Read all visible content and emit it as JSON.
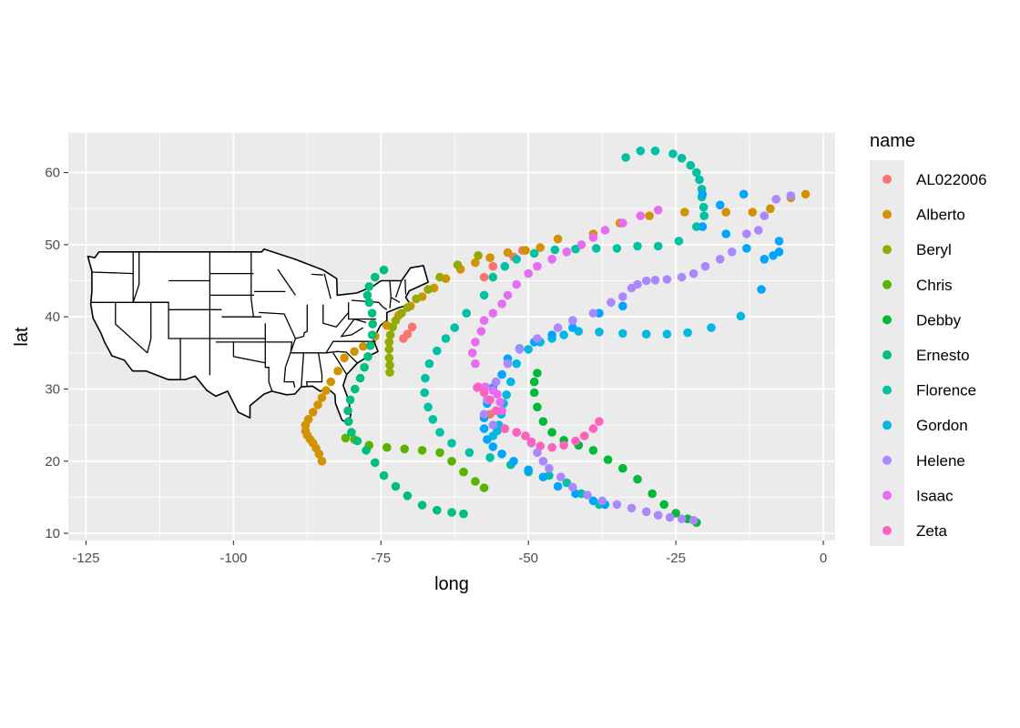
{
  "chart_data": {
    "type": "scatter",
    "xlabel": "long",
    "ylabel": "lat",
    "xlim": [
      -128,
      2
    ],
    "ylim": [
      9,
      65.5
    ],
    "x_ticks": [
      -125,
      -100,
      -75,
      -50,
      -25,
      0
    ],
    "y_ticks": [
      10,
      20,
      30,
      40,
      50,
      60
    ],
    "x_tick_labels": [
      "-125",
      "-100",
      "-75",
      "-50",
      "-25",
      "0"
    ],
    "y_tick_labels": [
      "10",
      "20",
      "30",
      "40",
      "50",
      "60"
    ],
    "grid": true,
    "legend": {
      "title": "name",
      "position": "right"
    },
    "basemap": "us-state-outlines",
    "series": [
      {
        "name": "AL022006",
        "color": "#F8766D",
        "points": [
          [
            -71.2,
            37
          ],
          [
            -70.5,
            37.6
          ],
          [
            -69.7,
            38.6
          ],
          [
            -57.5,
            45.5
          ],
          [
            -56,
            47
          ],
          [
            -52.5,
            48.3
          ],
          [
            -51,
            49.2
          ],
          [
            -56.5,
            26.5
          ]
        ]
      },
      {
        "name": "Alberto",
        "color": "#D39200",
        "points": [
          [
            -85,
            20
          ],
          [
            -85.5,
            21
          ],
          [
            -86,
            21.8
          ],
          [
            -86.5,
            22.5
          ],
          [
            -87,
            23
          ],
          [
            -87.5,
            23.6
          ],
          [
            -87.8,
            24.2
          ],
          [
            -87.8,
            25
          ],
          [
            -87.3,
            25.8
          ],
          [
            -86.5,
            26.8
          ],
          [
            -85.7,
            27.8
          ],
          [
            -85,
            28.8
          ],
          [
            -84.3,
            29.8
          ],
          [
            -83.5,
            31
          ],
          [
            -82.3,
            32.5
          ],
          [
            -81.2,
            34.3
          ],
          [
            -79.5,
            35.2
          ],
          [
            -78,
            35.9
          ],
          [
            -76,
            37.3
          ],
          [
            -74,
            38.8
          ],
          [
            -72,
            40.2
          ],
          [
            -70,
            41.5
          ],
          [
            -68,
            42.8
          ],
          [
            -66,
            44
          ],
          [
            -64,
            45.3
          ],
          [
            -61.5,
            46.6
          ],
          [
            -59,
            47.5
          ],
          [
            -56.5,
            48.2
          ],
          [
            -53.5,
            48.9
          ],
          [
            -50.5,
            49.2
          ],
          [
            -48,
            49.6
          ],
          [
            -45,
            50.8
          ],
          [
            -39,
            51.5
          ],
          [
            -34.5,
            53
          ],
          [
            -29.5,
            54
          ],
          [
            -23.5,
            54.5
          ],
          [
            -16.5,
            54.5
          ],
          [
            -12,
            54.5
          ],
          [
            -9,
            55
          ],
          [
            -5.5,
            56.5
          ],
          [
            -3,
            57
          ]
        ]
      },
      {
        "name": "Beryl",
        "color": "#93AA00",
        "points": [
          [
            -73.5,
            32.3
          ],
          [
            -73.5,
            33.3
          ],
          [
            -73.6,
            34.3
          ],
          [
            -73.6,
            35.5
          ],
          [
            -73.6,
            36.5
          ],
          [
            -73.4,
            37.5
          ],
          [
            -73,
            38.6
          ],
          [
            -72.5,
            39.5
          ],
          [
            -71.5,
            40.5
          ],
          [
            -70.5,
            41.3
          ],
          [
            -69,
            42.5
          ],
          [
            -67,
            43.8
          ],
          [
            -65,
            45.5
          ],
          [
            -62,
            47.2
          ],
          [
            -58.5,
            48.5
          ]
        ]
      },
      {
        "name": "Chris",
        "color": "#5BB300",
        "points": [
          [
            -81,
            23.2
          ],
          [
            -79.5,
            23
          ],
          [
            -77,
            22.2
          ],
          [
            -74,
            21.9
          ],
          [
            -71,
            21.7
          ],
          [
            -68,
            21.5
          ],
          [
            -65,
            21.2
          ],
          [
            -63,
            20
          ],
          [
            -61,
            18.5
          ],
          [
            -59,
            17.2
          ],
          [
            -57.5,
            16.3
          ]
        ]
      },
      {
        "name": "Debby",
        "color": "#00BA38",
        "points": [
          [
            -21.5,
            11.5
          ],
          [
            -23,
            12
          ],
          [
            -25,
            12.8
          ],
          [
            -27,
            14
          ],
          [
            -29,
            15.5
          ],
          [
            -31.5,
            17.5
          ],
          [
            -34,
            19
          ],
          [
            -36.5,
            20.2
          ],
          [
            -39,
            21.5
          ],
          [
            -41.5,
            22.2
          ],
          [
            -44,
            22.9
          ],
          [
            -46,
            24
          ],
          [
            -47.5,
            25.5
          ],
          [
            -48.5,
            27.5
          ],
          [
            -49,
            29.5
          ],
          [
            -49,
            31
          ],
          [
            -48.5,
            32.2
          ]
        ]
      },
      {
        "name": "Ernesto",
        "color": "#00BF7D",
        "points": [
          [
            -61,
            12.7
          ],
          [
            -63,
            12.9
          ],
          [
            -65.5,
            13.2
          ],
          [
            -68,
            13.9
          ],
          [
            -70.5,
            15.2
          ],
          [
            -72.5,
            16.5
          ],
          [
            -74.5,
            18
          ],
          [
            -76,
            19.8
          ],
          [
            -77.5,
            21.5
          ],
          [
            -79,
            22.8
          ],
          [
            -80,
            24
          ],
          [
            -80.5,
            25.5
          ],
          [
            -80.6,
            27
          ],
          [
            -80.2,
            28.5
          ],
          [
            -79.4,
            30
          ],
          [
            -78.5,
            31.5
          ],
          [
            -77.8,
            33
          ],
          [
            -77.2,
            34.5
          ],
          [
            -76.8,
            36
          ],
          [
            -76.5,
            37.5
          ],
          [
            -76.4,
            39
          ],
          [
            -76.5,
            40.5
          ],
          [
            -77,
            42
          ],
          [
            -77.3,
            43
          ],
          [
            -77,
            44.2
          ],
          [
            -76,
            45.5
          ],
          [
            -74.5,
            46.5
          ]
        ]
      },
      {
        "name": "Florence",
        "color": "#00C1A3",
        "points": [
          [
            -38,
            14
          ],
          [
            -41,
            15.5
          ],
          [
            -43.5,
            17
          ],
          [
            -46.5,
            18
          ],
          [
            -50,
            18.5
          ],
          [
            -53,
            19.5
          ],
          [
            -56.5,
            20.5
          ],
          [
            -60,
            21.2
          ],
          [
            -63,
            22.5
          ],
          [
            -65,
            24
          ],
          [
            -66.2,
            25.8
          ],
          [
            -67,
            27.5
          ],
          [
            -67.6,
            29.5
          ],
          [
            -67.5,
            31.5
          ],
          [
            -66.8,
            33.5
          ],
          [
            -65.5,
            35.3
          ],
          [
            -64,
            37
          ],
          [
            -62.5,
            38.5
          ],
          [
            -60.5,
            40.5
          ],
          [
            -57.5,
            43
          ],
          [
            -56,
            45.5
          ],
          [
            -54,
            47
          ],
          [
            -52,
            48
          ],
          [
            -49,
            48.8
          ],
          [
            -45.5,
            49.3
          ],
          [
            -42,
            49.4
          ],
          [
            -38.5,
            49.5
          ],
          [
            -35,
            49.5
          ],
          [
            -31.5,
            49.8
          ],
          [
            -28,
            49.8
          ],
          [
            -24.5,
            50.5
          ],
          [
            -21.5,
            52.5
          ],
          [
            -20.5,
            52.5
          ],
          [
            -20.2,
            54
          ],
          [
            -20.3,
            55.2
          ],
          [
            -20.6,
            56.6
          ],
          [
            -20.6,
            57.7
          ],
          [
            -21,
            59
          ],
          [
            -21.5,
            60
          ],
          [
            -22.5,
            61
          ],
          [
            -24,
            62
          ],
          [
            -25.5,
            62.6
          ],
          [
            -28.5,
            63
          ],
          [
            -31,
            63
          ],
          [
            -33.5,
            62.1
          ]
        ]
      },
      {
        "name": "Gordon",
        "color": "#00B9E3",
        "points": [
          [
            -14,
            40.1
          ],
          [
            -19,
            38.5
          ],
          [
            -23,
            37.8
          ],
          [
            -26.5,
            37.6
          ],
          [
            -30,
            37.6
          ],
          [
            -34,
            37.7
          ],
          [
            -38,
            37.9
          ],
          [
            -41.5,
            38
          ],
          [
            -44,
            37.5
          ],
          [
            -46,
            37
          ],
          [
            -48,
            36.5
          ],
          [
            -50,
            35.5
          ],
          [
            -52,
            33.5
          ],
          [
            -53,
            31
          ],
          [
            -53.7,
            29.2
          ],
          [
            -54.2,
            28
          ],
          [
            -54.6,
            26.5
          ],
          [
            -55,
            25
          ],
          [
            -55.3,
            24.2
          ],
          [
            -56,
            23.5
          ]
        ]
      },
      {
        "name": "Gordon",
        "color": "#00A5FF",
        "points": [
          [
            -37,
            14
          ],
          [
            -39,
            14.5
          ],
          [
            -42,
            15.5
          ],
          [
            -45,
            16.5
          ],
          [
            -47.5,
            17.8
          ],
          [
            -50,
            18.8
          ],
          [
            -52.5,
            20
          ],
          [
            -54.5,
            21
          ],
          [
            -56,
            22
          ],
          [
            -57,
            23
          ],
          [
            -57.5,
            24.5
          ],
          [
            -57.5,
            26
          ],
          [
            -57,
            28
          ],
          [
            -56,
            30.2
          ],
          [
            -54.5,
            32
          ],
          [
            -53.5,
            34.2
          ],
          [
            -51.5,
            35.6
          ],
          [
            -49,
            36.5
          ],
          [
            -46,
            37.5
          ],
          [
            -42.5,
            38.5
          ],
          [
            -38,
            40.5
          ],
          [
            -34,
            41.5
          ],
          [
            -13.5,
            57
          ],
          [
            -20.5,
            57
          ],
          [
            -17.5,
            55.5
          ],
          [
            -16.5,
            51.5
          ],
          [
            -20.5,
            52.5
          ],
          [
            -13,
            49.5
          ],
          [
            -10,
            48
          ],
          [
            -8.5,
            48.5
          ],
          [
            -7.5,
            49
          ],
          [
            -7.5,
            50.5
          ],
          [
            -10.5,
            43.8
          ]
        ]
      },
      {
        "name": "Helene",
        "color": "#AC88FF",
        "points": [
          [
            -22,
            11.8
          ],
          [
            -24,
            12
          ],
          [
            -26,
            12.2
          ],
          [
            -28,
            12.5
          ],
          [
            -30,
            13
          ],
          [
            -32.5,
            13.5
          ],
          [
            -35,
            14
          ],
          [
            -37.5,
            14.5
          ],
          [
            -40,
            15.3
          ],
          [
            -42.5,
            16.4
          ],
          [
            -44.5,
            17.8
          ],
          [
            -46.5,
            19
          ],
          [
            -47.5,
            20
          ],
          [
            -48.5,
            21.2
          ],
          [
            -49.5,
            22.5
          ],
          [
            -50.5,
            23.5
          ],
          [
            -52,
            24
          ],
          [
            -54,
            24.5
          ],
          [
            -56,
            25
          ],
          [
            -57.5,
            26.5
          ],
          [
            -57,
            28.5
          ],
          [
            -55.5,
            31
          ],
          [
            -53.5,
            33.5
          ],
          [
            -51.5,
            35.5
          ],
          [
            -48.5,
            37
          ],
          [
            -45,
            38.5
          ],
          [
            -42.5,
            39.5
          ],
          [
            -39,
            40.5
          ],
          [
            -36,
            42
          ],
          [
            -34,
            42.8
          ],
          [
            -32.5,
            44
          ],
          [
            -31.5,
            44.5
          ],
          [
            -30,
            45
          ],
          [
            -28.5,
            45.1
          ],
          [
            -26.5,
            45.2
          ],
          [
            -24,
            45.5
          ],
          [
            -22,
            46
          ],
          [
            -20,
            47
          ],
          [
            -17.5,
            48
          ],
          [
            -15.5,
            49
          ],
          [
            -13,
            51.5
          ],
          [
            -11,
            52
          ],
          [
            -10,
            54
          ],
          [
            -8,
            56.3
          ],
          [
            -5.5,
            56.8
          ]
        ]
      },
      {
        "name": "Isaac",
        "color": "#E76BF3",
        "points": [
          [
            -59,
            33.5
          ],
          [
            -59.5,
            35
          ],
          [
            -59,
            36.5
          ],
          [
            -58,
            38
          ],
          [
            -57.5,
            39.5
          ],
          [
            -56,
            40.5
          ],
          [
            -54.5,
            41.8
          ],
          [
            -53.5,
            43
          ],
          [
            -52,
            44.5
          ],
          [
            -50,
            46
          ],
          [
            -48.5,
            47
          ],
          [
            -46,
            48
          ],
          [
            -43.5,
            49
          ],
          [
            -41,
            50
          ],
          [
            -39,
            51
          ],
          [
            -37,
            52
          ],
          [
            -34,
            53
          ],
          [
            -31,
            54
          ],
          [
            -28,
            54.8
          ],
          [
            -58.7,
            30.2
          ],
          [
            -57.3,
            30.3
          ],
          [
            -56,
            29.8
          ],
          [
            -55.3,
            29.3
          ],
          [
            -54.8,
            28.2
          ],
          [
            -54.5,
            27
          ]
        ]
      },
      {
        "name": "Zeta",
        "color": "#FF62BC",
        "points": [
          [
            -38,
            25.5
          ],
          [
            -39,
            24.5
          ],
          [
            -40.5,
            23.5
          ],
          [
            -42,
            22.8
          ],
          [
            -44,
            22.2
          ],
          [
            -46,
            21.9
          ],
          [
            -48,
            22.1
          ],
          [
            -49.5,
            22.7
          ],
          [
            -50.5,
            23.5
          ],
          [
            -52,
            24
          ],
          [
            -54,
            24.5
          ],
          [
            -55.5,
            27
          ],
          [
            -56.5,
            28.5
          ],
          [
            -57.5,
            29.5
          ],
          [
            -58.5,
            30.3
          ]
        ]
      }
    ]
  }
}
